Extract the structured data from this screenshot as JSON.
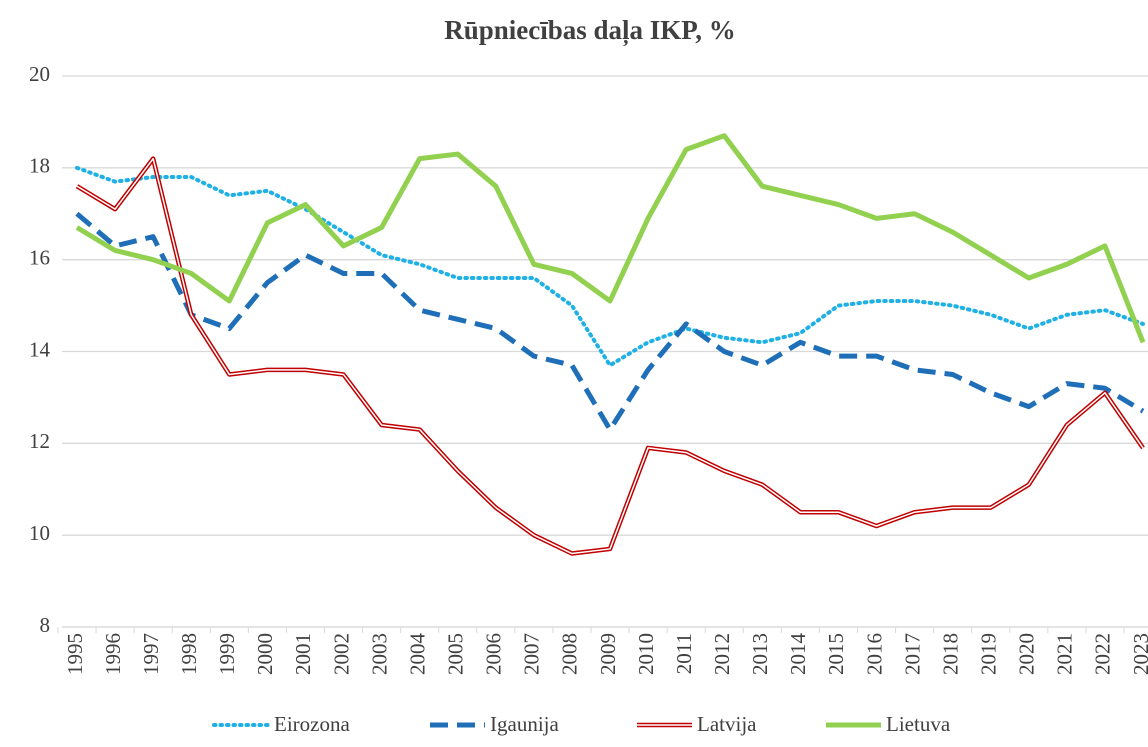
{
  "chart_data": {
    "type": "line",
    "title": "Rūpniecības daļa IKP, %",
    "categories": [
      "1995",
      "1996",
      "1997",
      "1998",
      "1999",
      "2000",
      "2001",
      "2002",
      "2003",
      "2004",
      "2005",
      "2006",
      "2007",
      "2008",
      "2009",
      "2010",
      "2011",
      "2012",
      "2013",
      "2014",
      "2015",
      "2016",
      "2017",
      "2018",
      "2019",
      "2020",
      "2021",
      "2022",
      "2023"
    ],
    "series": [
      {
        "name": "Eirozona",
        "color": "#1fb0e6",
        "style": "dotted",
        "values": [
          18.0,
          17.7,
          17.8,
          17.8,
          17.4,
          17.5,
          17.1,
          16.6,
          16.1,
          15.9,
          15.6,
          15.6,
          15.6,
          15.0,
          13.7,
          14.2,
          14.5,
          14.3,
          14.2,
          14.4,
          15.0,
          15.1,
          15.1,
          15.0,
          14.8,
          14.5,
          14.8,
          14.9,
          14.6
        ]
      },
      {
        "name": "Igaunija",
        "color": "#1f6fb8",
        "style": "dashed",
        "values": [
          17.0,
          16.3,
          16.5,
          14.8,
          14.5,
          15.5,
          16.1,
          15.7,
          15.7,
          14.9,
          14.7,
          14.5,
          13.9,
          13.7,
          12.3,
          13.6,
          14.6,
          14.0,
          13.7,
          14.2,
          13.9,
          13.9,
          13.6,
          13.5,
          13.1,
          12.8,
          13.3,
          13.2,
          12.7
        ]
      },
      {
        "name": "Latvija",
        "color": "#c00000",
        "style": "double",
        "values": [
          17.6,
          17.1,
          18.2,
          14.8,
          13.5,
          13.6,
          13.6,
          13.5,
          12.4,
          12.3,
          11.4,
          10.6,
          10.0,
          9.6,
          9.7,
          11.9,
          11.8,
          11.4,
          11.1,
          10.5,
          10.5,
          10.2,
          10.5,
          10.6,
          10.6,
          11.1,
          12.4,
          13.1,
          11.9
        ]
      },
      {
        "name": "Lietuva",
        "color": "#92d050",
        "style": "solid",
        "values": [
          16.7,
          16.2,
          16.0,
          15.7,
          15.1,
          16.8,
          17.2,
          16.3,
          16.7,
          18.2,
          18.3,
          17.6,
          15.9,
          15.7,
          15.1,
          16.9,
          18.4,
          18.7,
          17.6,
          17.4,
          17.2,
          16.9,
          17.0,
          16.6,
          16.1,
          15.6,
          15.9,
          16.3,
          14.2
        ]
      }
    ],
    "ylim": [
      8,
      20
    ],
    "yticks": [
      8,
      10,
      12,
      14,
      16,
      18,
      20
    ],
    "grid": true,
    "legend": "bottom"
  }
}
